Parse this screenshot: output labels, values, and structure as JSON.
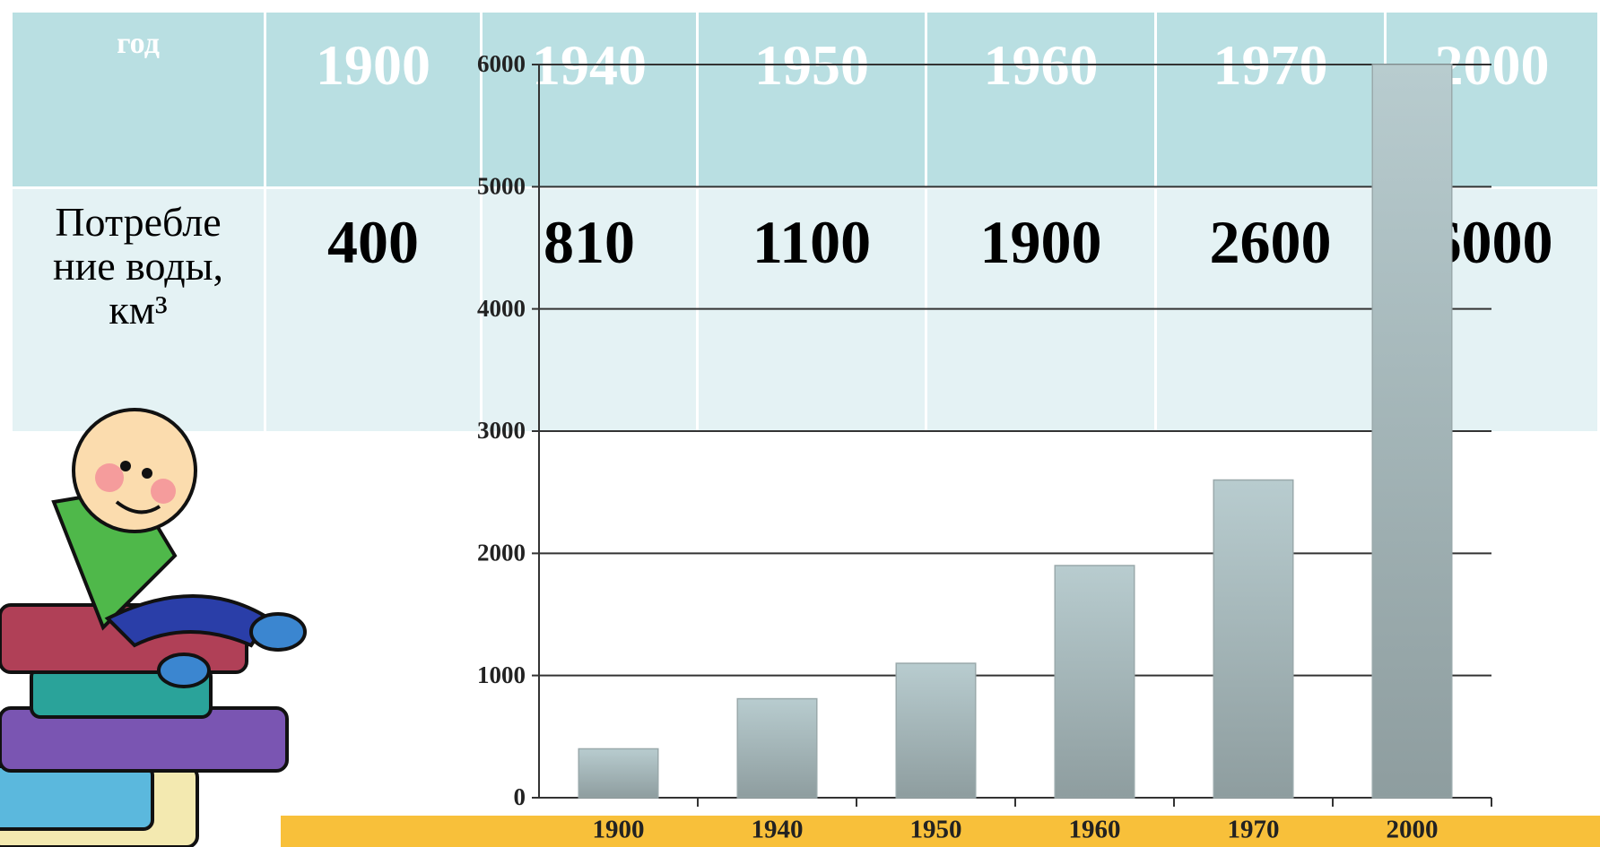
{
  "table": {
    "header": [
      "год",
      "1900",
      "1940",
      "1950",
      "1960",
      "1970",
      "2000"
    ],
    "rows": [
      [
        "Потребле ние воды, км³",
        "400",
        "810",
        "1100",
        "1900",
        "2600",
        "6000"
      ]
    ]
  },
  "chart_data": {
    "type": "bar",
    "categories": [
      "1900",
      "1940",
      "1950",
      "1960",
      "1970",
      "2000"
    ],
    "values": [
      400,
      810,
      1100,
      1900,
      2600,
      6000
    ],
    "ylim": [
      0,
      6000
    ],
    "yticks": [
      0,
      1000,
      2000,
      3000,
      4000,
      5000,
      6000
    ],
    "grid": true
  }
}
